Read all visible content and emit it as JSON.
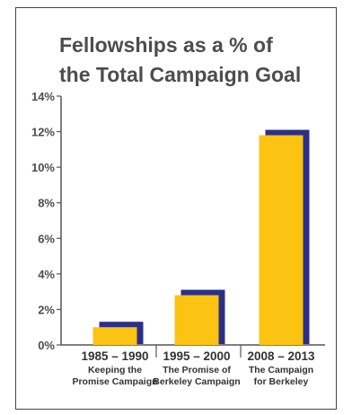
{
  "colors": {
    "bar": "#fbc312",
    "shadow": "#2b2f86",
    "axis": "#555555",
    "text": "#4d4d4d"
  },
  "chart_data": {
    "type": "bar",
    "title": "Fellowships as a % of the Total Campaign Goal",
    "title_lines": [
      "Fellowships as a % of",
      "the Total Campaign Goal"
    ],
    "categories": [
      {
        "years": "1985 – 1990",
        "line1": "Keeping the",
        "line2": "Promise Campaign"
      },
      {
        "years": "1995 – 2000",
        "line1": "The Promise of",
        "line2": "Berkeley Campaign"
      },
      {
        "years": "2008 – 2013",
        "line1": "The Campaign",
        "line2": "for Berkeley"
      }
    ],
    "values": [
      1.0,
      2.8,
      11.8
    ],
    "ylim": [
      0,
      14
    ],
    "yticks": [
      "0%",
      "2%",
      "4%",
      "6%",
      "8%",
      "10%",
      "12%",
      "14%"
    ],
    "grid": false,
    "legend": "none"
  }
}
